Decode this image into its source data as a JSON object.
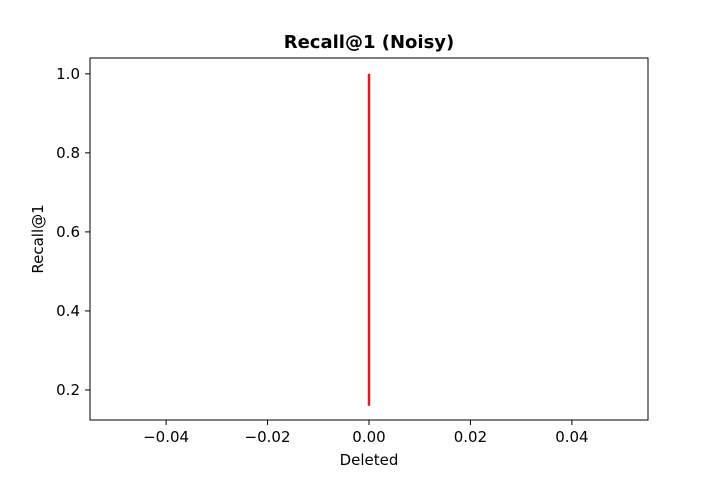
{
  "chart_data": {
    "type": "line",
    "title": "Recall@1 (Noisy)",
    "xlabel": "Deleted",
    "ylabel": "Recall@1",
    "xlim": [
      -0.055,
      0.055
    ],
    "ylim": [
      0.124,
      1.04
    ],
    "xticks": [
      -0.04,
      -0.02,
      0.0,
      0.02,
      0.04
    ],
    "xtick_labels": [
      "−0.04",
      "−0.02",
      "0.00",
      "0.02",
      "0.04"
    ],
    "yticks": [
      0.2,
      0.4,
      0.6,
      0.8,
      1.0
    ],
    "ytick_labels": [
      "0.2",
      "0.4",
      "0.6",
      "0.8",
      "1.0"
    ],
    "grid": false,
    "series": [
      {
        "color": "#e41a1c",
        "x": [
          0.0,
          0.0
        ],
        "y": [
          0.16,
          1.0
        ]
      }
    ]
  }
}
